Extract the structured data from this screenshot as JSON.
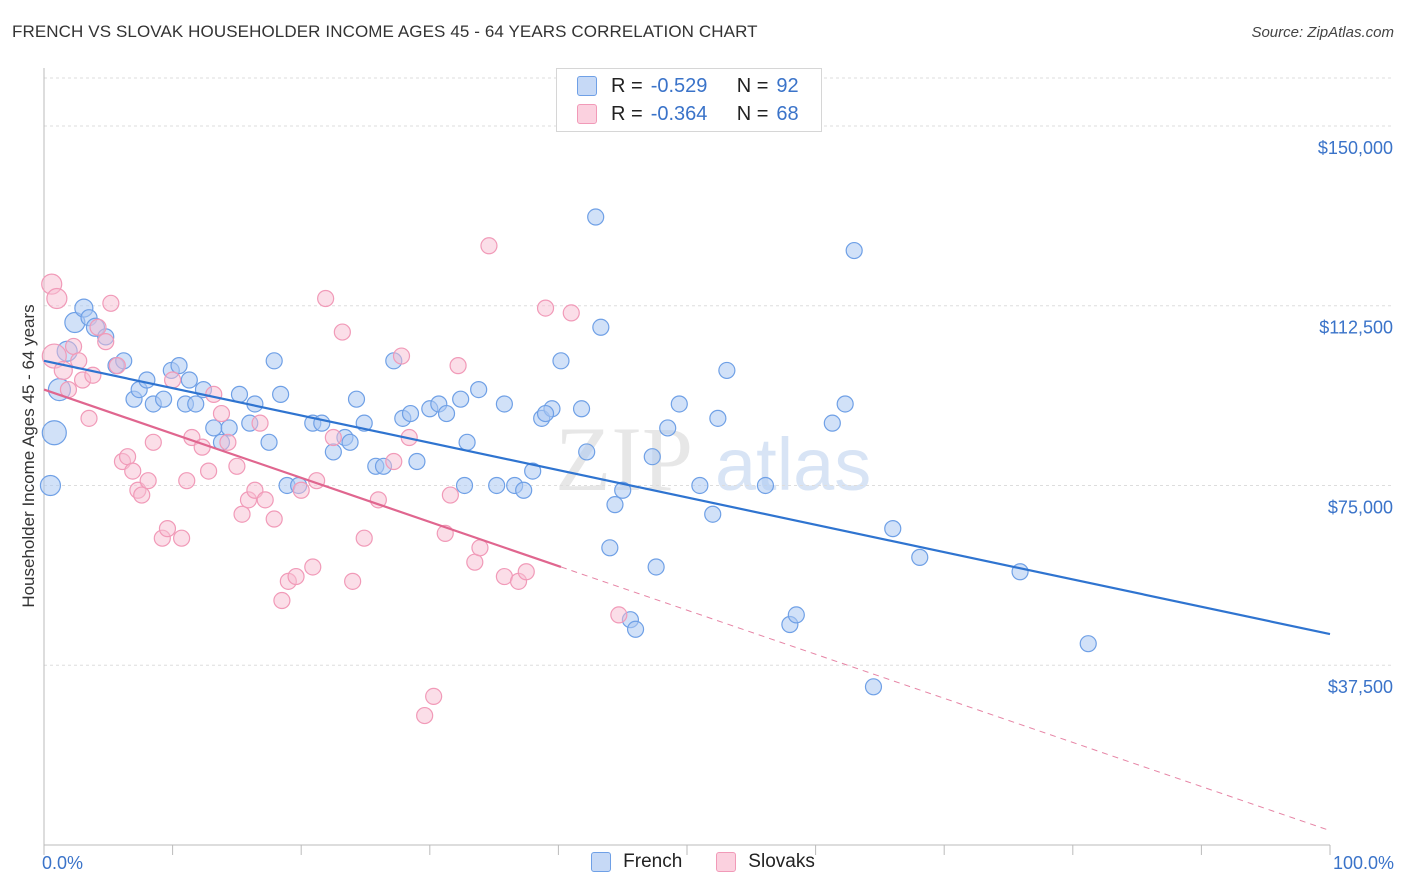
{
  "title": "FRENCH VS SLOVAK HOUSEHOLDER INCOME AGES 45 - 64 YEARS CORRELATION CHART",
  "source": "Source: ZipAtlas.com",
  "watermark": {
    "zip": "ZIP",
    "atlas": "atlas"
  },
  "legend_top": [
    {
      "r_label": "R =",
      "r_value": "-0.529",
      "n_label": "N =",
      "n_value": "92"
    },
    {
      "r_label": "R =",
      "r_value": "-0.364",
      "n_label": "N =",
      "n_value": "68"
    }
  ],
  "colors": {
    "french": "#6fa0e6",
    "french_line": "#2f74d0",
    "slovaks": "#f19ab8",
    "slovaks_line": "#e0668f",
    "axis_text": "#3a73c9",
    "grid": "#dddddd"
  },
  "chart_data": {
    "type": "scatter",
    "xlabel": "",
    "ylabel": "Householder Income Ages 45 - 64 years",
    "xlim": [
      0,
      100
    ],
    "ylim": [
      0,
      160000
    ],
    "x_tick_labels": [
      "0.0%",
      "100.0%"
    ],
    "y_ticks": [
      37500,
      75000,
      112500,
      150000
    ],
    "y_tick_labels": [
      "$37,500",
      "$75,000",
      "$112,500",
      "$150,000"
    ],
    "grid": "horizontal dashed",
    "legend": "bottom-center",
    "series": [
      {
        "name": "French",
        "r": -0.529,
        "n": 92,
        "trend": {
          "x": [
            0,
            100
          ],
          "y": [
            101000,
            44000
          ],
          "dashed_to": null
        },
        "points": [
          [
            0.5,
            75000,
            12
          ],
          [
            0.8,
            86000,
            14
          ],
          [
            1.2,
            95000,
            13
          ],
          [
            1.8,
            103000,
            12
          ],
          [
            2.4,
            109000,
            12
          ],
          [
            3.1,
            112000,
            11
          ],
          [
            3.5,
            110000,
            10
          ],
          [
            4.0,
            108000,
            11
          ],
          [
            4.8,
            106000,
            10
          ],
          [
            5.6,
            100000,
            10
          ],
          [
            6.2,
            101000,
            10
          ],
          [
            7.0,
            93000,
            10
          ],
          [
            7.4,
            95000,
            10
          ],
          [
            8.0,
            97000,
            10
          ],
          [
            8.5,
            92000,
            10
          ],
          [
            9.3,
            93000,
            10
          ],
          [
            9.9,
            99000,
            10
          ],
          [
            10.5,
            100000,
            10
          ],
          [
            11.0,
            92000,
            10
          ],
          [
            11.3,
            97000,
            10
          ],
          [
            11.8,
            92000,
            10
          ],
          [
            12.4,
            95000,
            10
          ],
          [
            13.2,
            87000,
            10
          ],
          [
            13.8,
            84000,
            10
          ],
          [
            14.4,
            87000,
            10
          ],
          [
            15.2,
            94000,
            10
          ],
          [
            16.0,
            88000,
            10
          ],
          [
            16.4,
            92000,
            10
          ],
          [
            17.5,
            84000,
            10
          ],
          [
            17.9,
            101000,
            10
          ],
          [
            18.4,
            94000,
            10
          ],
          [
            18.9,
            75000,
            10
          ],
          [
            19.8,
            75000,
            10
          ],
          [
            20.9,
            88000,
            10
          ],
          [
            21.6,
            88000,
            10
          ],
          [
            22.5,
            82000,
            10
          ],
          [
            23.4,
            85000,
            10
          ],
          [
            23.8,
            84000,
            10
          ],
          [
            24.3,
            93000,
            10
          ],
          [
            24.9,
            88000,
            10
          ],
          [
            25.8,
            79000,
            10
          ],
          [
            26.4,
            79000,
            10
          ],
          [
            27.2,
            101000,
            10
          ],
          [
            27.9,
            89000,
            10
          ],
          [
            28.5,
            90000,
            10
          ],
          [
            29.0,
            80000,
            10
          ],
          [
            30.0,
            91000,
            10
          ],
          [
            30.7,
            92000,
            10
          ],
          [
            31.3,
            90000,
            10
          ],
          [
            32.4,
            93000,
            10
          ],
          [
            32.7,
            75000,
            10
          ],
          [
            32.9,
            84000,
            10
          ],
          [
            33.8,
            95000,
            10
          ],
          [
            35.2,
            75000,
            10
          ],
          [
            35.8,
            92000,
            10
          ],
          [
            36.6,
            75000,
            10
          ],
          [
            37.3,
            74000,
            10
          ],
          [
            38.0,
            78000,
            10
          ],
          [
            38.7,
            89000,
            10
          ],
          [
            39.5,
            91000,
            10
          ],
          [
            39.0,
            90000,
            10
          ],
          [
            40.2,
            101000,
            10
          ],
          [
            41.8,
            91000,
            10
          ],
          [
            42.2,
            82000,
            10
          ],
          [
            42.9,
            131000,
            10
          ],
          [
            43.3,
            108000,
            10
          ],
          [
            44.0,
            62000,
            10
          ],
          [
            44.4,
            71000,
            10
          ],
          [
            45.0,
            74000,
            10
          ],
          [
            45.6,
            47000,
            10
          ],
          [
            46.0,
            45000,
            10
          ],
          [
            47.3,
            81000,
            10
          ],
          [
            47.6,
            58000,
            10
          ],
          [
            48.5,
            87000,
            10
          ],
          [
            49.4,
            92000,
            10
          ],
          [
            51.0,
            75000,
            10
          ],
          [
            52.0,
            69000,
            10
          ],
          [
            52.4,
            89000,
            10
          ],
          [
            53.1,
            99000,
            10
          ],
          [
            56.1,
            75000,
            10
          ],
          [
            58.0,
            46000,
            10
          ],
          [
            58.5,
            48000,
            10
          ],
          [
            61.3,
            88000,
            10
          ],
          [
            62.3,
            92000,
            10
          ],
          [
            63.0,
            124000,
            10
          ],
          [
            64.5,
            33000,
            10
          ],
          [
            66.0,
            66000,
            10
          ],
          [
            68.1,
            60000,
            10
          ],
          [
            75.9,
            57000,
            10
          ],
          [
            81.2,
            42000,
            10
          ]
        ]
      },
      {
        "name": "Slovaks",
        "r": -0.364,
        "n": 68,
        "trend": {
          "x": [
            0,
            40.2
          ],
          "y": [
            95000,
            58000
          ],
          "dashed_to": [
            100,
            3000
          ]
        },
        "points": [
          [
            0.6,
            117000,
            12
          ],
          [
            0.8,
            102000,
            14
          ],
          [
            1.0,
            114000,
            12
          ],
          [
            1.5,
            99000,
            11
          ],
          [
            1.9,
            95000,
            10
          ],
          [
            2.3,
            104000,
            10
          ],
          [
            2.7,
            101000,
            10
          ],
          [
            3.0,
            97000,
            10
          ],
          [
            3.5,
            89000,
            10
          ],
          [
            3.8,
            98000,
            10
          ],
          [
            4.2,
            108000,
            10
          ],
          [
            4.8,
            105000,
            10
          ],
          [
            5.2,
            113000,
            10
          ],
          [
            5.7,
            100000,
            10
          ],
          [
            6.1,
            80000,
            10
          ],
          [
            6.5,
            81000,
            10
          ],
          [
            6.9,
            78000,
            10
          ],
          [
            7.3,
            74000,
            10
          ],
          [
            7.6,
            73000,
            10
          ],
          [
            8.1,
            76000,
            10
          ],
          [
            8.5,
            84000,
            10
          ],
          [
            9.2,
            64000,
            10
          ],
          [
            9.6,
            66000,
            10
          ],
          [
            10.0,
            97000,
            10
          ],
          [
            10.7,
            64000,
            10
          ],
          [
            11.1,
            76000,
            10
          ],
          [
            11.5,
            85000,
            10
          ],
          [
            12.3,
            83000,
            10
          ],
          [
            12.8,
            78000,
            10
          ],
          [
            13.2,
            94000,
            10
          ],
          [
            13.8,
            90000,
            10
          ],
          [
            14.3,
            84000,
            10
          ],
          [
            15.0,
            79000,
            10
          ],
          [
            15.4,
            69000,
            10
          ],
          [
            15.9,
            72000,
            10
          ],
          [
            16.4,
            74000,
            10
          ],
          [
            16.8,
            88000,
            10
          ],
          [
            17.2,
            72000,
            10
          ],
          [
            17.9,
            68000,
            10
          ],
          [
            18.5,
            51000,
            10
          ],
          [
            19.0,
            55000,
            10
          ],
          [
            19.6,
            56000,
            10
          ],
          [
            20.0,
            74000,
            10
          ],
          [
            20.9,
            58000,
            10
          ],
          [
            21.2,
            76000,
            10
          ],
          [
            21.9,
            114000,
            10
          ],
          [
            22.5,
            85000,
            10
          ],
          [
            23.2,
            107000,
            10
          ],
          [
            24.0,
            55000,
            10
          ],
          [
            24.9,
            64000,
            10
          ],
          [
            26.0,
            72000,
            10
          ],
          [
            27.2,
            80000,
            10
          ],
          [
            27.8,
            102000,
            10
          ],
          [
            28.4,
            85000,
            10
          ],
          [
            29.6,
            27000,
            10
          ],
          [
            30.3,
            31000,
            10
          ],
          [
            31.2,
            65000,
            10
          ],
          [
            31.6,
            73000,
            10
          ],
          [
            32.2,
            100000,
            10
          ],
          [
            33.5,
            59000,
            10
          ],
          [
            33.9,
            62000,
            10
          ],
          [
            34.6,
            125000,
            10
          ],
          [
            35.8,
            56000,
            10
          ],
          [
            36.9,
            55000,
            10
          ],
          [
            37.5,
            57000,
            10
          ],
          [
            39.0,
            112000,
            10
          ],
          [
            41.0,
            111000,
            10
          ],
          [
            44.7,
            48000,
            10
          ]
        ]
      }
    ]
  }
}
